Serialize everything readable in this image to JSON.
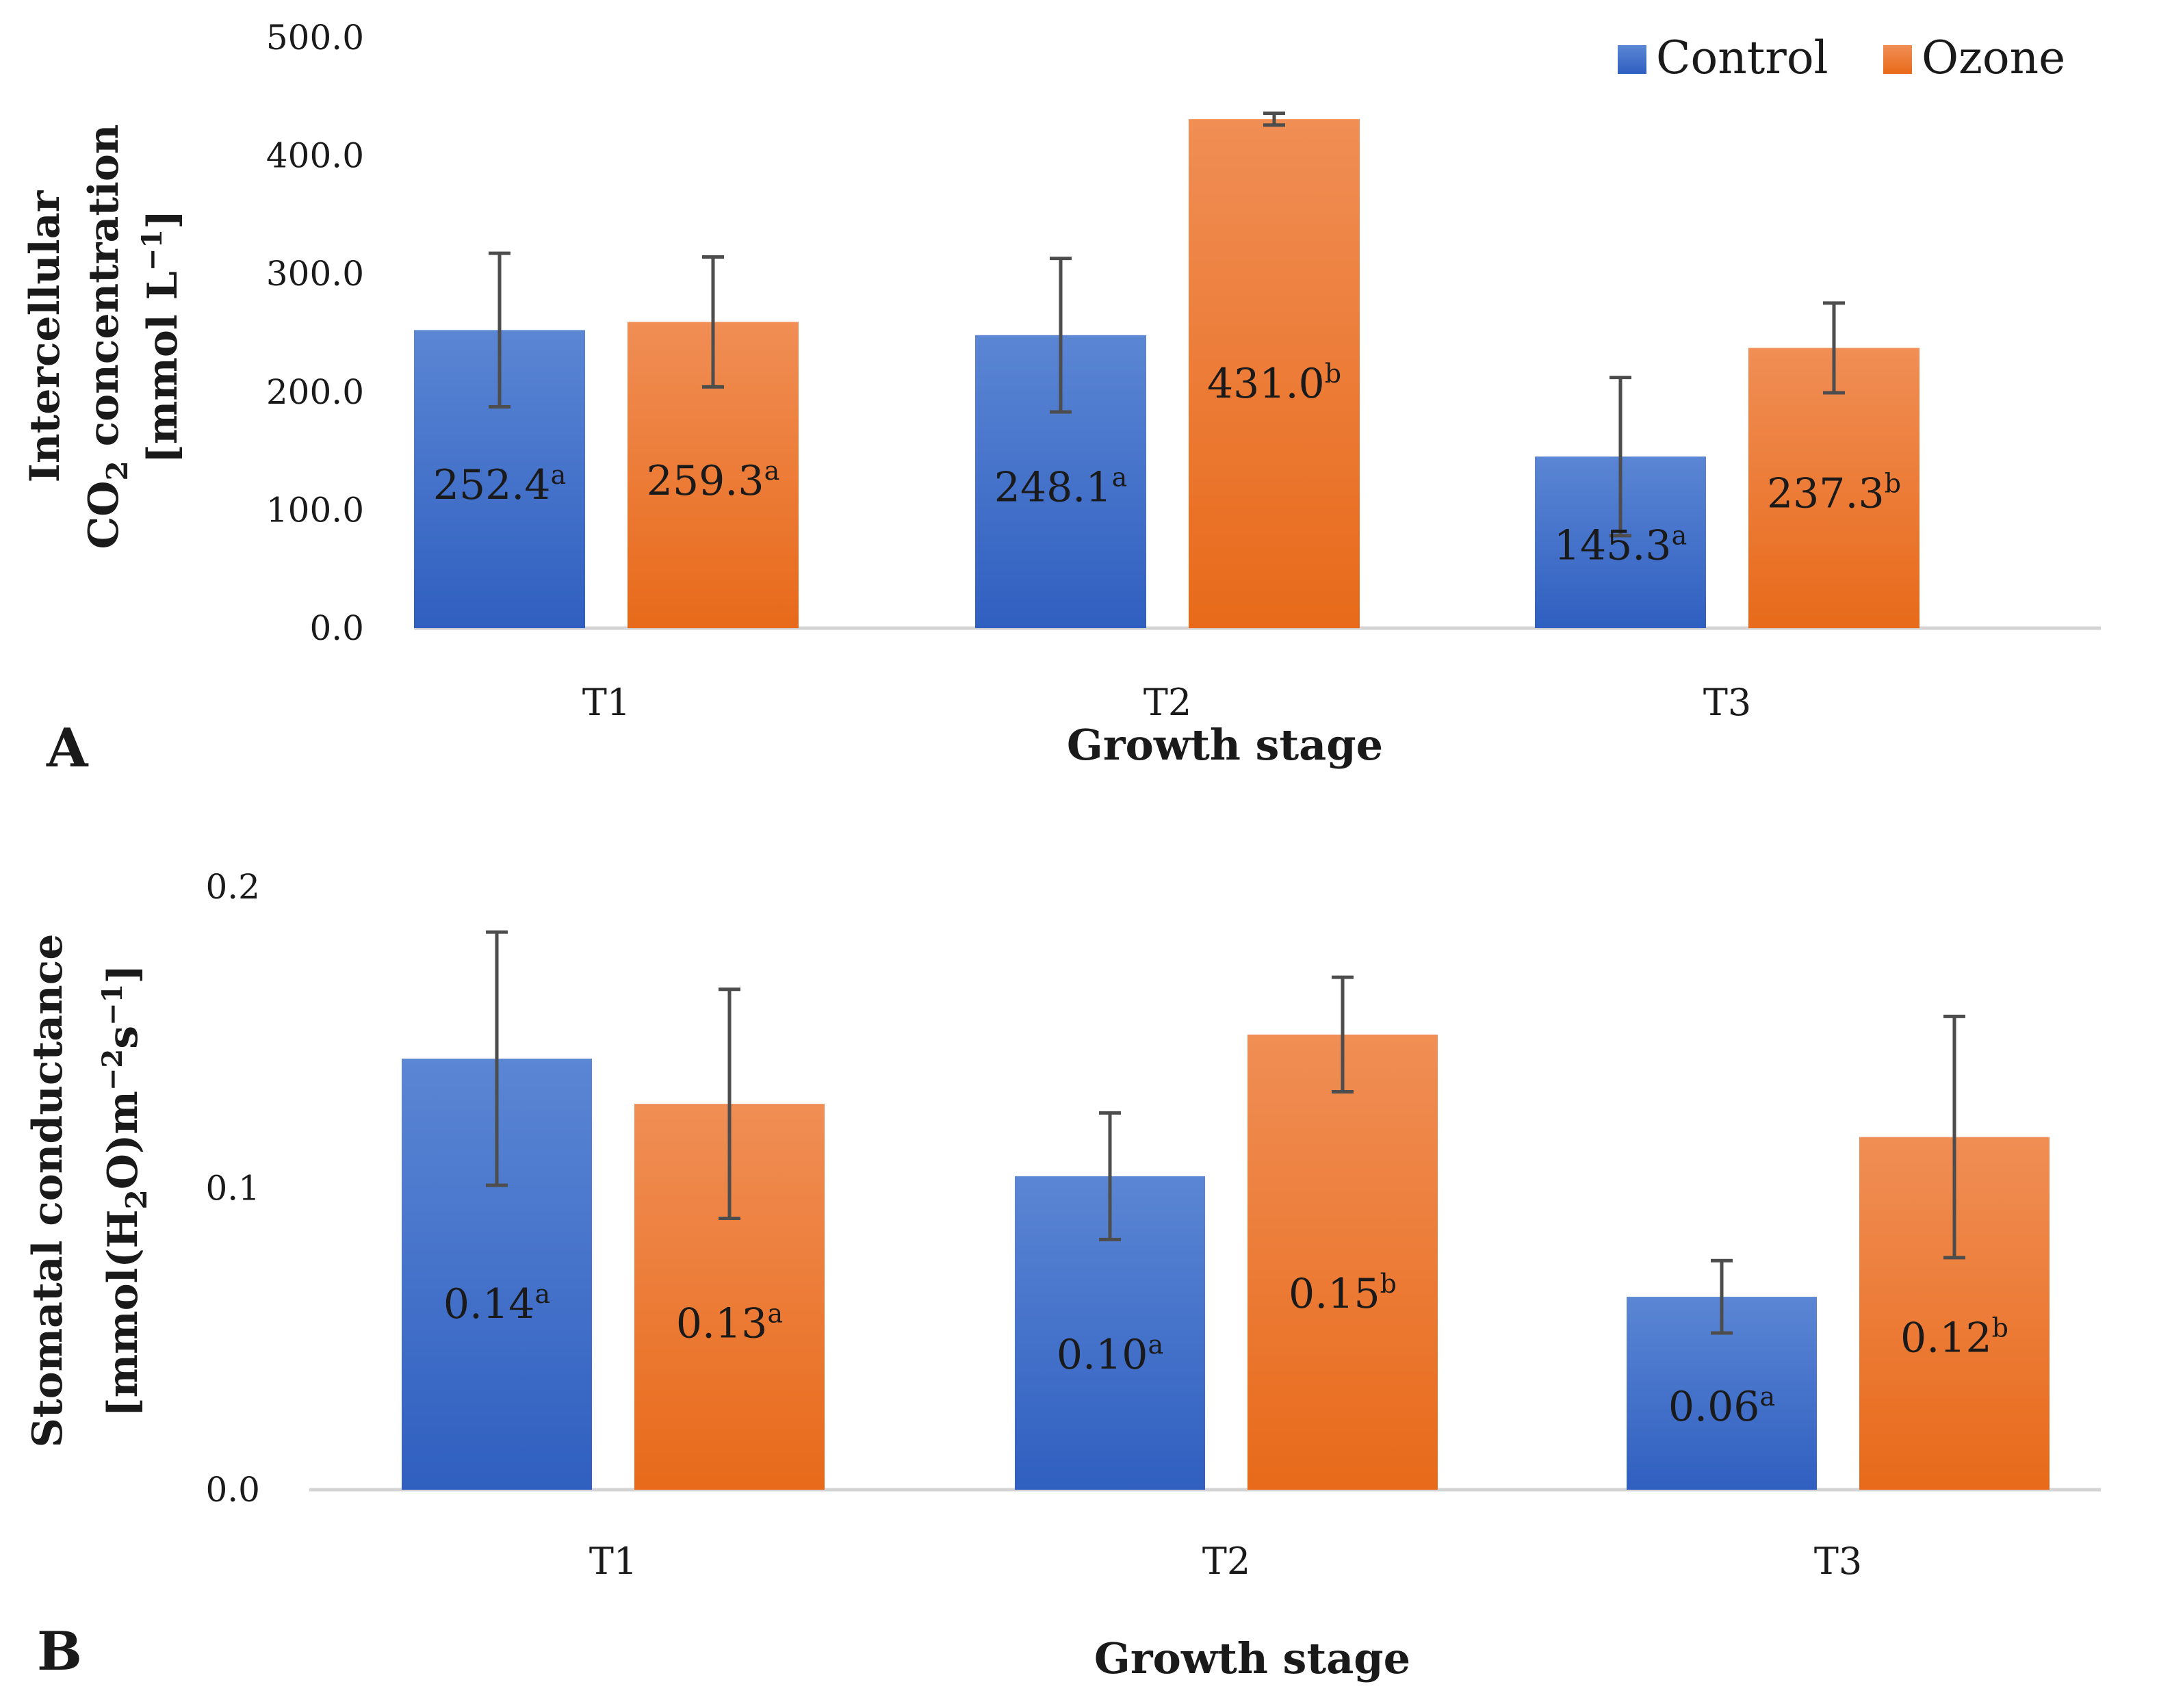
{
  "legend": [
    {
      "name": "Control",
      "color": "#3a6cc8"
    },
    {
      "name": "Ozone",
      "color": "#ef7a2e"
    }
  ],
  "chart_data": [
    {
      "panel_label": "A",
      "type": "bar",
      "categories": [
        "T1",
        "T2",
        "T3"
      ],
      "xlabel": "Growth stage",
      "ylabel_lines": [
        "Intercellular",
        "CO",
        "2",
        " concentration",
        "[mmol L",
        "−1",
        "]"
      ],
      "ylim": [
        0,
        500
      ],
      "yticks": [
        "0.0",
        "100.0",
        "200.0",
        "300.0",
        "400.0",
        "500.0"
      ],
      "grid": false,
      "legend_position": "top-right",
      "series": [
        {
          "name": "Control",
          "values": [
            252.4,
            248.1,
            145.3
          ],
          "errors": [
            65,
            65,
            67
          ],
          "labels": [
            "252.4",
            "248.1",
            "145.3"
          ],
          "letters": [
            "a",
            "a",
            "a"
          ]
        },
        {
          "name": "Ozone",
          "values": [
            259.3,
            431.0,
            237.3
          ],
          "errors": [
            55,
            5,
            38
          ],
          "labels": [
            "259.3",
            "431.0",
            "237.3"
          ],
          "letters": [
            "a",
            "b",
            "b"
          ]
        }
      ]
    },
    {
      "panel_label": "B",
      "type": "bar",
      "categories": [
        "T1",
        "T2",
        "T3"
      ],
      "xlabel": "Growth stage",
      "ylabel_lines": [
        "Stomatal conductance",
        "[mmol(H",
        "2",
        "O)m",
        "−2",
        "s",
        "−1",
        "]"
      ],
      "ylim": [
        0,
        0.2
      ],
      "yticks": [
        "0.0",
        "0.1",
        "0.2"
      ],
      "grid": false,
      "series": [
        {
          "name": "Control",
          "values": [
            0.143,
            0.104,
            0.064
          ],
          "errors": [
            0.042,
            0.021,
            0.012
          ],
          "labels": [
            "0.14",
            "0.10",
            "0.06"
          ],
          "letters": [
            "a",
            "a",
            "a"
          ]
        },
        {
          "name": "Ozone",
          "values": [
            0.128,
            0.151,
            0.117
          ],
          "errors": [
            0.038,
            0.019,
            0.04
          ],
          "labels": [
            "0.13",
            "0.15",
            "0.12"
          ],
          "letters": [
            "a",
            "b",
            "b"
          ]
        }
      ]
    }
  ]
}
